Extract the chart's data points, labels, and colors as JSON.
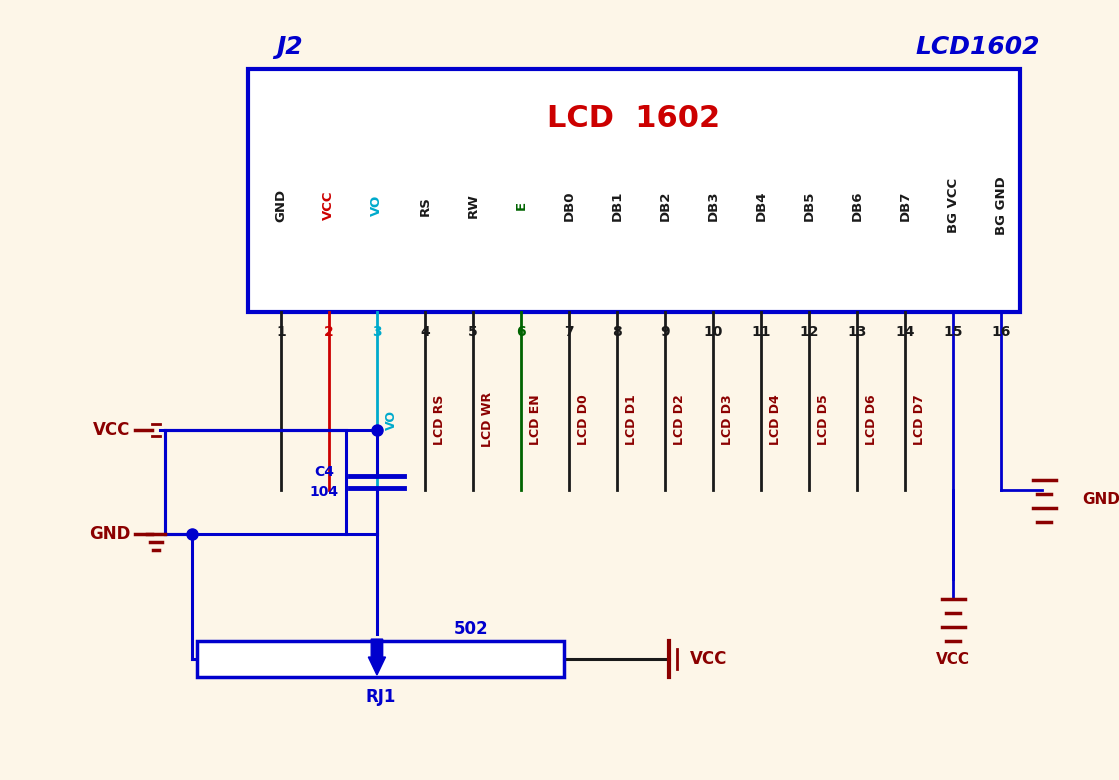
{
  "bg_color": "#fdf6e8",
  "dark_blue": "#0000CD",
  "red": "#CC0000",
  "dark_red": "#8B0000",
  "cyan": "#00AACC",
  "teal": "#008B8B",
  "dark_green": "#006400",
  "black": "#1a1a1a",
  "pin_labels": [
    "GND",
    "VCC",
    "VO",
    "RS",
    "RW",
    "E",
    "DB0",
    "DB1",
    "DB2",
    "DB3",
    "DB4",
    "DB5",
    "DB6",
    "DB7",
    "BG VCC",
    "BG GND"
  ],
  "pin_numbers": [
    "1",
    "2",
    "3",
    "4",
    "5",
    "6",
    "7",
    "8",
    "9",
    "10",
    "11",
    "12",
    "13",
    "14",
    "15",
    "16"
  ],
  "wire_labels": [
    "VO",
    "LCD RS",
    "LCD WR",
    "LCD EN",
    "LCD D0",
    "LCD D1",
    "LCD D2",
    "LCD D3",
    "LCD D4",
    "LCD D5",
    "LCD D6",
    "LCD D7"
  ]
}
